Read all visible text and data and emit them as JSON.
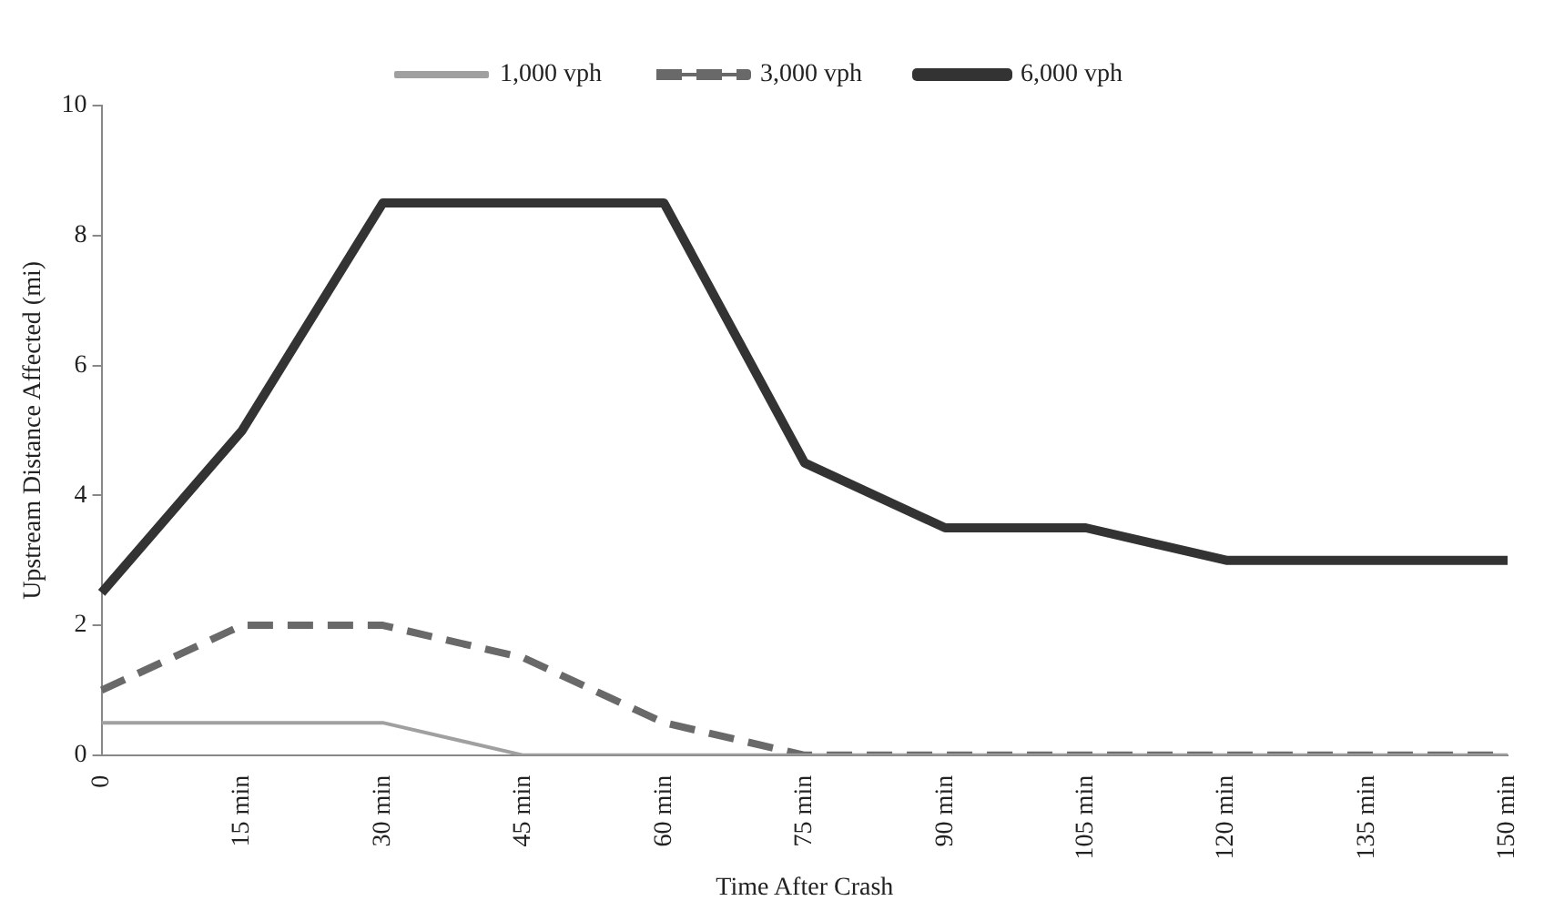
{
  "chart_data": {
    "type": "line",
    "xlabel": "Time After Crash",
    "ylabel": "Upstream Distance Affected (mi)",
    "categories": [
      "0",
      "15 min",
      "30 min",
      "45 min",
      "60 min",
      "75 min",
      "90 min",
      "105 min",
      "120 min",
      "135 min",
      "150 min"
    ],
    "series": [
      {
        "name": "1,000 vph",
        "color": "#a0a0a0",
        "line_style": "solid",
        "values": [
          0.5,
          0.5,
          0.5,
          0,
          0,
          0,
          0,
          0,
          0,
          0,
          0
        ]
      },
      {
        "name": "3,000 vph",
        "color": "#696969",
        "line_style": "dashed",
        "values": [
          1,
          2,
          2,
          1.5,
          0.5,
          0,
          0,
          0,
          0,
          0,
          0
        ]
      },
      {
        "name": "6,000 vph",
        "color": "#333333",
        "line_style": "solid",
        "values": [
          2.5,
          5,
          8.5,
          8.5,
          8.5,
          4.5,
          3.5,
          3.5,
          3,
          3,
          3
        ]
      }
    ],
    "ylim": [
      0,
      10
    ],
    "yticks": [
      0,
      2,
      4,
      6,
      8,
      10
    ],
    "grid": false,
    "legend": "top",
    "marker": "none"
  }
}
